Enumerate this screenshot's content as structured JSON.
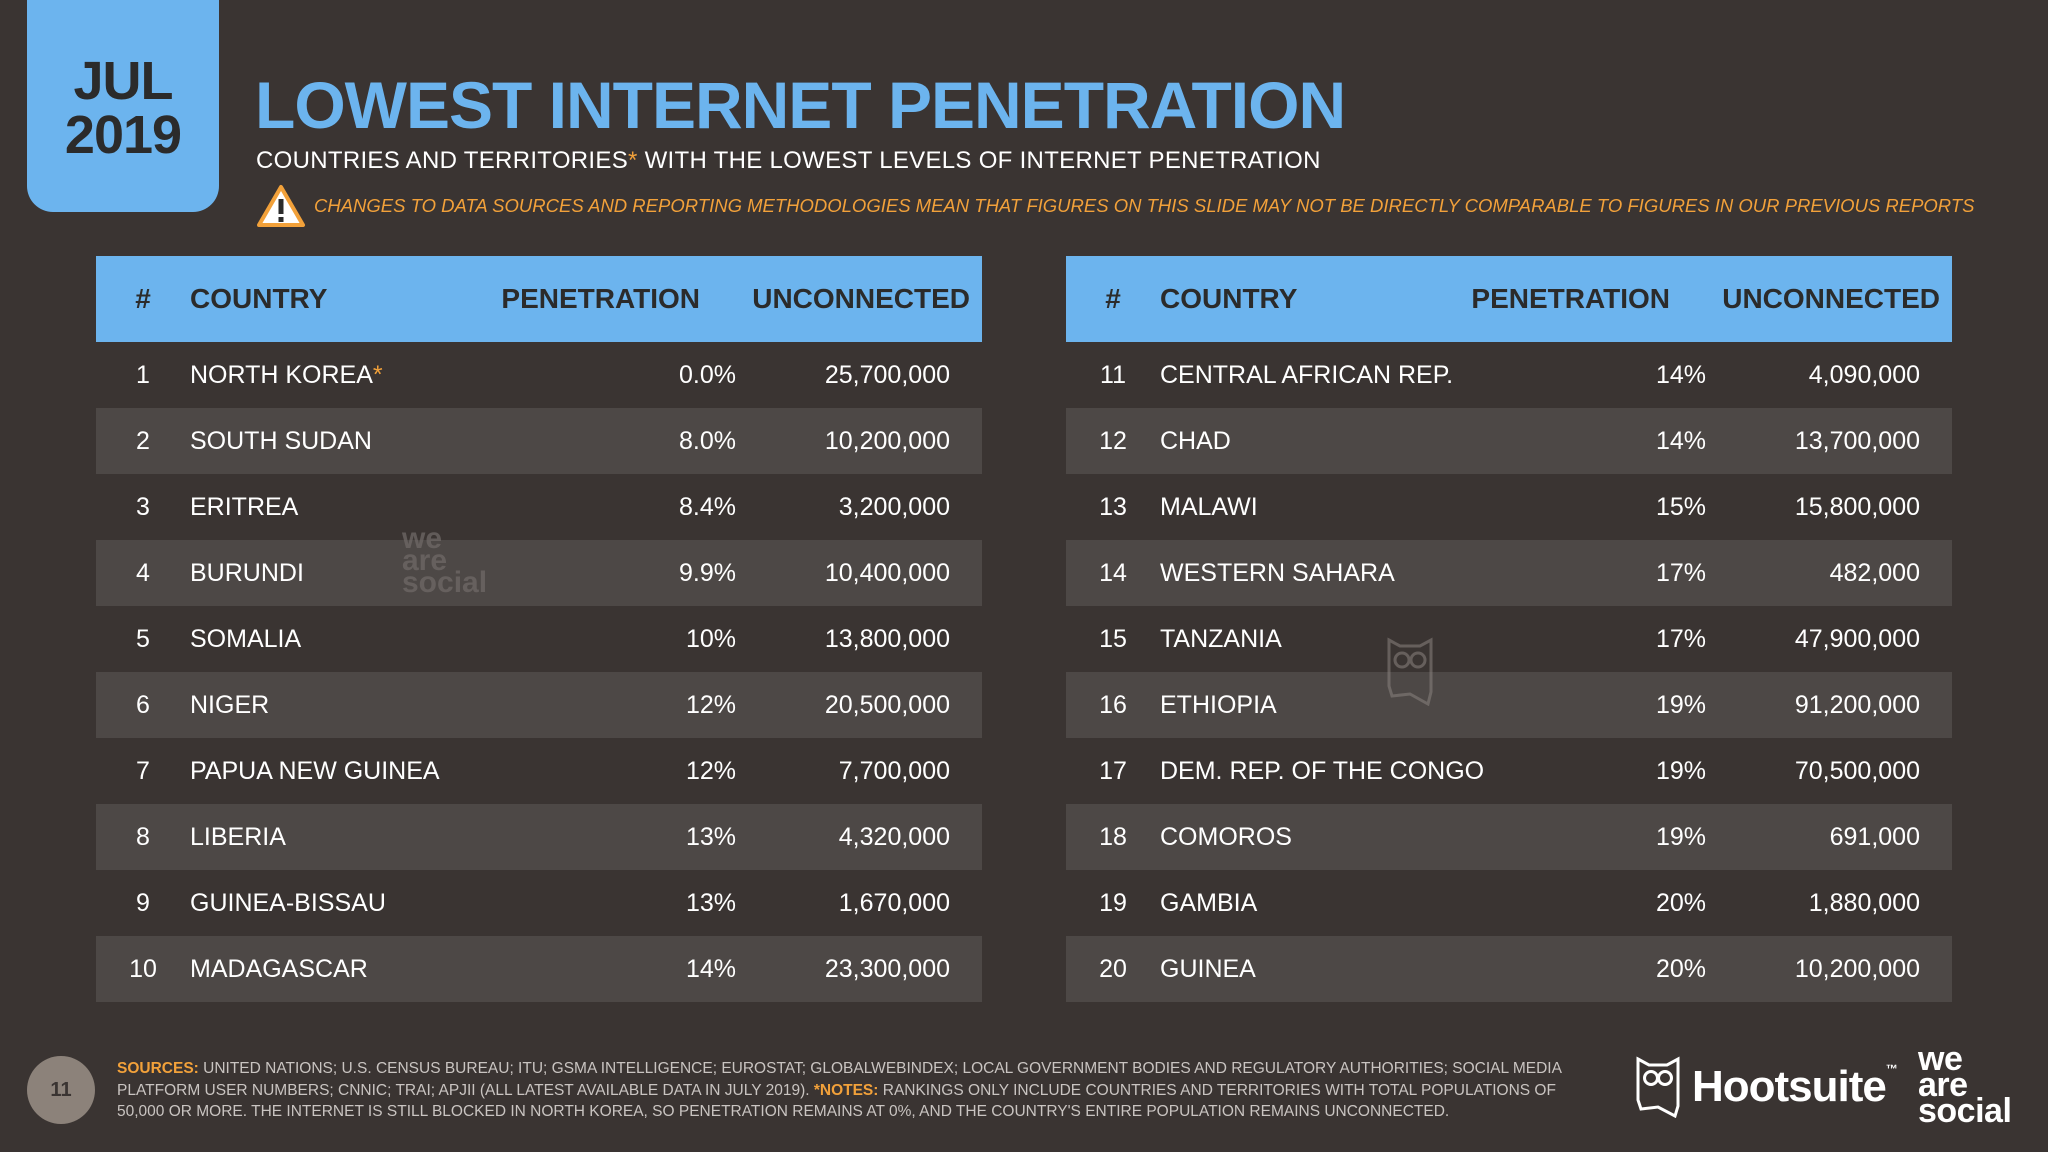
{
  "badge": {
    "month": "JUL",
    "year": "2019"
  },
  "title": "LOWEST INTERNET PENETRATION",
  "subtitle": {
    "text": "COUNTRIES AND TERRITORIES",
    "star": "*",
    "text2": " WITH THE LOWEST LEVELS OF INTERNET PENETRATION"
  },
  "warning": "CHANGES TO DATA SOURCES AND REPORTING METHODOLOGIES MEAN THAT FIGURES ON THIS SLIDE MAY NOT BE DIRECTLY COMPARABLE TO FIGURES IN OUR PREVIOUS REPORTS",
  "headers": {
    "num": "#",
    "country": "COUNTRY",
    "penetration": "PENETRATION",
    "unconnected": "UNCONNECTED"
  },
  "left_rows": [
    {
      "num": "1",
      "country": "NORTH KOREA",
      "mark": "*",
      "pen": "0.0%",
      "unc": "25,700,000"
    },
    {
      "num": "2",
      "country": "SOUTH SUDAN",
      "mark": "",
      "pen": "8.0%",
      "unc": "10,200,000"
    },
    {
      "num": "3",
      "country": "ERITREA",
      "mark": "",
      "pen": "8.4%",
      "unc": "3,200,000"
    },
    {
      "num": "4",
      "country": "BURUNDI",
      "mark": "",
      "pen": "9.9%",
      "unc": "10,400,000"
    },
    {
      "num": "5",
      "country": "SOMALIA",
      "mark": "",
      "pen": "10%",
      "unc": "13,800,000"
    },
    {
      "num": "6",
      "country": "NIGER",
      "mark": "",
      "pen": "12%",
      "unc": "20,500,000"
    },
    {
      "num": "7",
      "country": "PAPUA NEW GUINEA",
      "mark": "",
      "pen": "12%",
      "unc": "7,700,000"
    },
    {
      "num": "8",
      "country": "LIBERIA",
      "mark": "",
      "pen": "13%",
      "unc": "4,320,000"
    },
    {
      "num": "9",
      "country": "GUINEA-BISSAU",
      "mark": "",
      "pen": "13%",
      "unc": "1,670,000"
    },
    {
      "num": "10",
      "country": "MADAGASCAR",
      "mark": "",
      "pen": "14%",
      "unc": "23,300,000"
    }
  ],
  "right_rows": [
    {
      "num": "11",
      "country": "CENTRAL AFRICAN REP.",
      "mark": "",
      "pen": "14%",
      "unc": "4,090,000"
    },
    {
      "num": "12",
      "country": "CHAD",
      "mark": "",
      "pen": "14%",
      "unc": "13,700,000"
    },
    {
      "num": "13",
      "country": "MALAWI",
      "mark": "",
      "pen": "15%",
      "unc": "15,800,000"
    },
    {
      "num": "14",
      "country": "WESTERN SAHARA",
      "mark": "",
      "pen": "17%",
      "unc": "482,000"
    },
    {
      "num": "15",
      "country": "TANZANIA",
      "mark": "",
      "pen": "17%",
      "unc": "47,900,000"
    },
    {
      "num": "16",
      "country": "ETHIOPIA",
      "mark": "",
      "pen": "19%",
      "unc": "91,200,000"
    },
    {
      "num": "17",
      "country": "DEM. REP. OF THE CONGO",
      "mark": "",
      "pen": "19%",
      "unc": "70,500,000"
    },
    {
      "num": "18",
      "country": "COMOROS",
      "mark": "",
      "pen": "19%",
      "unc": "691,000"
    },
    {
      "num": "19",
      "country": "GAMBIA",
      "mark": "",
      "pen": "20%",
      "unc": "1,880,000"
    },
    {
      "num": "20",
      "country": "GUINEA",
      "mark": "",
      "pen": "20%",
      "unc": "10,200,000"
    }
  ],
  "footer": {
    "page_number": "11",
    "sources_label": "SOURCES:",
    "sources_text": " UNITED NATIONS; U.S. CENSUS BUREAU; ITU; GSMA INTELLIGENCE; EUROSTAT; GLOBALWEBINDEX; LOCAL GOVERNMENT BODIES AND REGULATORY AUTHORITIES; SOCIAL MEDIA PLATFORM USER NUMBERS; CNNIC; TRAI; APJII (ALL LATEST AVAILABLE DATA IN JULY 2019). ",
    "notes_label": "*NOTES:",
    "notes_text": " RANKINGS ONLY INCLUDE COUNTRIES AND TERRITORIES WITH TOTAL POPULATIONS OF 50,000 OR MORE. THE INTERNET IS STILL BLOCKED IN NORTH KOREA, SO PENETRATION REMAINS AT 0%, AND THE COUNTRY'S ENTIRE POPULATION REMAINS UNCONNECTED.",
    "hootsuite": "Hootsuite",
    "tm": "™",
    "wsl": [
      "we",
      "are",
      "social"
    ]
  },
  "colors": {
    "background": "#3a3432",
    "accent_blue": "#6cb4ee",
    "accent_orange": "#f2a13a",
    "row_alt": "#4d4846"
  }
}
